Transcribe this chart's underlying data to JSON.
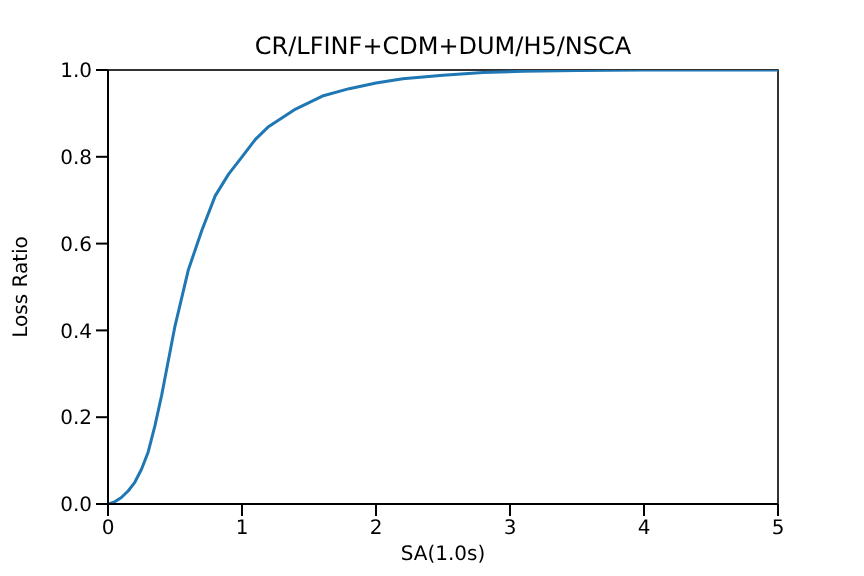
{
  "chart_data": {
    "type": "line",
    "title": "CR/LFINF+CDM+DUM/H5/NSCA",
    "xlabel": "SA(1.0s)",
    "ylabel": "Loss Ratio",
    "x": [
      0,
      0.05,
      0.1,
      0.15,
      0.2,
      0.25,
      0.3,
      0.35,
      0.4,
      0.45,
      0.5,
      0.6,
      0.7,
      0.8,
      0.9,
      1.0,
      1.1,
      1.2,
      1.3,
      1.4,
      1.5,
      1.6,
      1.8,
      2.0,
      2.2,
      2.5,
      2.8,
      3.1,
      3.5,
      4.0,
      4.5,
      5.0
    ],
    "series": [
      {
        "color": "#1f77b4",
        "values": [
          0,
          0.005,
          0.015,
          0.03,
          0.05,
          0.08,
          0.12,
          0.18,
          0.25,
          0.33,
          0.41,
          0.54,
          0.63,
          0.71,
          0.76,
          0.8,
          0.84,
          0.87,
          0.89,
          0.91,
          0.925,
          0.94,
          0.957,
          0.97,
          0.98,
          0.988,
          0.994,
          0.997,
          0.999,
          1,
          1,
          1
        ]
      }
    ],
    "xlim": [
      0,
      5
    ],
    "xticks": [
      0,
      1,
      2,
      3,
      4,
      5
    ],
    "ylim": [
      0,
      1
    ],
    "yticks": [
      {
        "value": 0,
        "label": "0.0"
      },
      {
        "value": 0.2,
        "label": "0.2"
      },
      {
        "value": 0.4,
        "label": "0.4"
      },
      {
        "value": 0.6,
        "label": "0.6"
      },
      {
        "value": 0.8,
        "label": "0.8"
      },
      {
        "value": 1,
        "label": "1.0"
      }
    ],
    "grid": false
  }
}
